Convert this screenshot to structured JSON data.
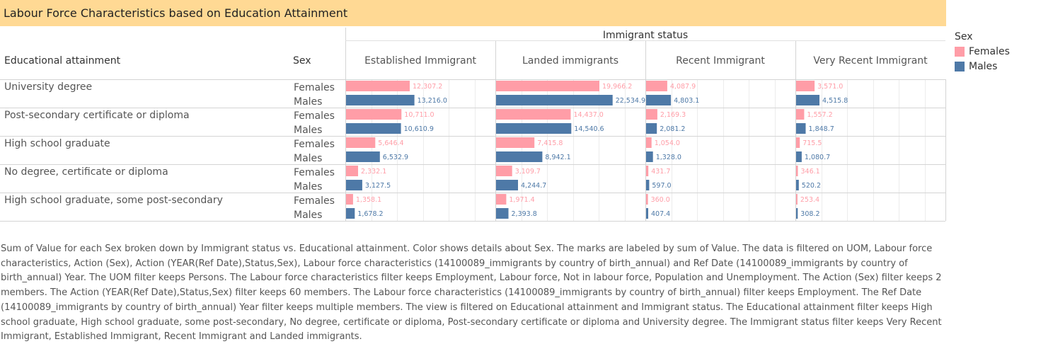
{
  "title": "Labour Force Characteristics based on Education Attainment",
  "headers": {
    "group": "Immigrant status",
    "row_dim": "Educational attainment",
    "sex_dim": "Sex"
  },
  "legend": {
    "title": "Sex",
    "items": [
      {
        "label": "Females",
        "color": "#ff9da7"
      },
      {
        "label": "Males",
        "color": "#4e79a7"
      }
    ]
  },
  "chart_data": {
    "type": "bar",
    "orientation": "horizontal",
    "columns": [
      "Established Immigrant",
      "Landed immigrants",
      "Recent Immigrant",
      "Very Recent Immigrant"
    ],
    "rows": [
      "University degree",
      "Post-secondary certificate or diploma",
      "High school graduate",
      "No degree, certificate or diploma",
      "High school graduate, some post-secondary"
    ],
    "sexes": [
      "Females",
      "Males"
    ],
    "values": [
      [
        [
          12307.2,
          13216.0
        ],
        [
          19966.2,
          22534.9
        ],
        [
          4087.9,
          4803.1
        ],
        [
          3571.0,
          4515.8
        ]
      ],
      [
        [
          10711.0,
          10610.9
        ],
        [
          14437.0,
          14540.6
        ],
        [
          2169.3,
          2081.2
        ],
        [
          1557.2,
          1848.7
        ]
      ],
      [
        [
          5646.4,
          6532.9
        ],
        [
          7415.8,
          8942.1
        ],
        [
          1054.0,
          1328.0
        ],
        [
          715.5,
          1080.7
        ]
      ],
      [
        [
          2332.1,
          3127.5
        ],
        [
          3109.7,
          4244.7
        ],
        [
          431.7,
          597.0
        ],
        [
          346.1,
          520.2
        ]
      ],
      [
        [
          1358.1,
          1678.2
        ],
        [
          1971.4,
          2393.8
        ],
        [
          360.0,
          407.4
        ],
        [
          253.4,
          308.2
        ]
      ]
    ],
    "labels": [
      [
        [
          "12,307.2",
          "13,216.0"
        ],
        [
          "19,966.2",
          "22,534.9"
        ],
        [
          "4,087.9",
          "4,803.1"
        ],
        [
          "3,571.0",
          "4,515.8"
        ]
      ],
      [
        [
          "10,711.0",
          "10,610.9"
        ],
        [
          "14,437.0",
          "14,540.6"
        ],
        [
          "2,169.3",
          "2,081.2"
        ],
        [
          "1,557.2",
          "1,848.7"
        ]
      ],
      [
        [
          "5,646.4",
          "6,532.9"
        ],
        [
          "7,415.8",
          "8,942.1"
        ],
        [
          "1,054.0",
          "1,328.0"
        ],
        [
          "715.5",
          "1,080.7"
        ]
      ],
      [
        [
          "2,332.1",
          "3,127.5"
        ],
        [
          "3,109.7",
          "4,244.7"
        ],
        [
          "431.7",
          "597.0"
        ],
        [
          "346.1",
          "520.2"
        ]
      ],
      [
        [
          "1,358.1",
          "1,678.2"
        ],
        [
          "1,971.4",
          "2,393.8"
        ],
        [
          "360.0",
          "407.4"
        ],
        [
          "253.4",
          "308.2"
        ]
      ]
    ],
    "xlim": [
      0,
      29000
    ],
    "colors": {
      "Females": "#ff9da7",
      "Males": "#4e79a7"
    },
    "label_colors": {
      "Females": "#ff9da7",
      "Males": "#4e79a7"
    }
  },
  "caption": "Sum of Value for each Sex broken down by Immigrant status vs. Educational attainment.  Color shows details about Sex.  The marks are labeled by sum of Value. The data is filtered on UOM, Labour force characteristics, Action (Sex), Action (YEAR(Ref Date),Status,Sex), Labour force characteristics (14100089_immigrants by country of birth_annual) and Ref Date (14100089_immigrants by country of birth_annual) Year. The UOM filter keeps Persons. The Labour force characteristics filter keeps Employment, Labour force, Not in labour force, Population and Unemployment. The Action (Sex) filter keeps 2 members. The Action (YEAR(Ref Date),Status,Sex) filter keeps 60 members. The Labour force characteristics (14100089_immigrants by country of birth_annual) filter keeps Employment. The Ref Date (14100089_immigrants by country of birth_annual) Year filter keeps multiple members. The view is filtered on Educational attainment and Immigrant status. The Educational attainment filter keeps High school graduate, High school graduate, some post-secondary, No degree, certificate or diploma, Post-secondary certificate or diploma and University degree. The Immigrant status filter keeps Very Recent Immigrant, Established Immigrant, Recent Immigrant and Landed immigrants."
}
